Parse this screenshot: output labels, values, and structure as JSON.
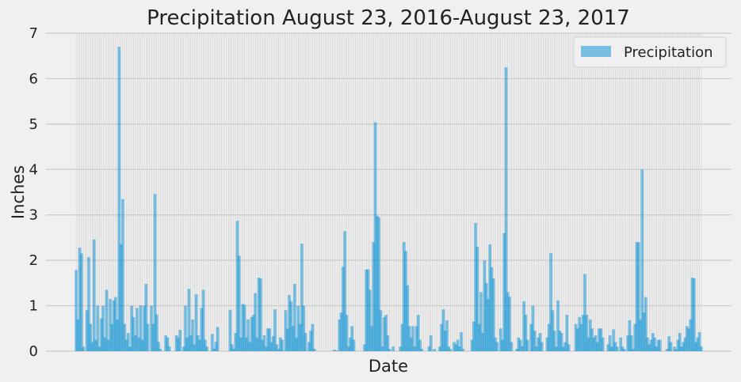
{
  "chart_data": {
    "type": "bar",
    "title": "Precipitation August 23, 2016-August 23, 2017",
    "xlabel": "Date",
    "ylabel": "Inches",
    "ylim": [
      0,
      7
    ],
    "yticks": [
      "0",
      "1",
      "2",
      "3",
      "4",
      "5",
      "6",
      "7"
    ],
    "grid": true,
    "legend_position": "top-right",
    "series": [
      {
        "name": "Precipitation",
        "color": "#008fd5",
        "values": [
          1.79,
          0.7,
          2.28,
          2.15,
          0.1,
          0.0,
          0.9,
          2.07,
          0.6,
          0.2,
          2.46,
          0.25,
          1.0,
          0.1,
          0.72,
          1.0,
          0.3,
          1.35,
          0.25,
          1.15,
          0.6,
          1.12,
          1.19,
          0.7,
          6.7,
          2.35,
          3.35,
          0.6,
          0.25,
          0.4,
          0.1,
          1.0,
          0.75,
          0.35,
          0.95,
          0.3,
          1.01,
          0.25,
          1.0,
          1.48,
          0.6,
          0.0,
          1.0,
          0.6,
          3.46,
          0.81,
          0.2,
          0.05,
          0.0,
          0.0,
          0.35,
          0.3,
          0.1,
          0.0,
          0.0,
          0.0,
          0.35,
          0.3,
          0.47,
          0.0,
          0.1,
          1.0,
          0.3,
          1.37,
          0.35,
          0.7,
          0.15,
          1.25,
          0.35,
          0.25,
          0.95,
          1.35,
          0.25,
          0.1,
          0.0,
          0.0,
          0.38,
          0.05,
          0.2,
          0.53,
          0.0,
          0.0,
          0.0,
          0.0,
          0.0,
          0.0,
          0.91,
          0.15,
          0.05,
          0.4,
          2.87,
          2.1,
          0.3,
          1.04,
          1.02,
          0.3,
          0.7,
          0.2,
          0.75,
          0.8,
          1.28,
          0.3,
          1.62,
          1.6,
          0.25,
          0.35,
          0.1,
          0.5,
          0.5,
          0.2,
          0.33,
          0.92,
          0.15,
          0.05,
          0.3,
          0.25,
          0.0,
          0.9,
          0.5,
          1.24,
          1.1,
          0.55,
          1.48,
          0.3,
          1.0,
          0.6,
          2.37,
          1.0,
          0.4,
          0.0,
          0.2,
          0.45,
          0.6,
          0.05,
          0.0,
          0.0,
          0.0,
          0.0,
          0.0,
          0.0,
          0.0,
          0.0,
          0.0,
          0.0,
          0.03,
          0.02,
          0.0,
          0.7,
          0.85,
          1.86,
          2.64,
          0.8,
          0.1,
          0.3,
          0.55,
          0.25,
          0.0,
          0.0,
          0.0,
          0.0,
          0.0,
          0.15,
          1.8,
          1.8,
          1.35,
          0.55,
          2.4,
          5.04,
          2.98,
          2.95,
          0.9,
          0.1,
          0.75,
          0.8,
          0.35,
          0.05,
          0.0,
          0.1,
          0.0,
          0.0,
          0.0,
          0.1,
          0.6,
          2.4,
          2.2,
          1.45,
          0.55,
          0.3,
          0.55,
          0.1,
          0.55,
          0.8,
          0.25,
          0.05,
          0.0,
          0.0,
          0.0,
          0.1,
          0.35,
          0.0,
          0.05,
          0.0,
          0.0,
          0.1,
          0.6,
          0.92,
          0.45,
          0.68,
          0.1,
          0.05,
          0.0,
          0.2,
          0.15,
          0.25,
          0.1,
          0.42,
          0.05,
          0.0,
          0.0,
          0.0,
          0.0,
          0.25,
          0.65,
          2.82,
          2.3,
          0.6,
          1.3,
          0.4,
          2.0,
          1.5,
          1.15,
          2.35,
          1.85,
          1.6,
          0.3,
          0.2,
          0.0,
          0.5,
          0.25,
          2.6,
          6.25,
          1.3,
          1.2,
          0.2,
          0.0,
          0.0,
          0.05,
          0.3,
          0.25,
          0.1,
          1.1,
          0.8,
          0.25,
          0.0,
          0.6,
          1.0,
          0.45,
          0.1,
          0.3,
          0.4,
          0.2,
          0.0,
          0.0,
          0.3,
          0.6,
          2.16,
          0.9,
          0.45,
          0.1,
          1.12,
          0.45,
          0.4,
          0.1,
          0.2,
          0.8,
          0.15,
          0.0,
          0.0,
          0.0,
          0.6,
          0.5,
          0.75,
          0.6,
          0.8,
          1.7,
          0.8,
          0.3,
          0.7,
          0.5,
          0.3,
          0.35,
          0.2,
          0.5,
          0.5,
          0.3,
          0.0,
          0.0,
          0.15,
          0.35,
          0.1,
          0.48,
          0.2,
          0.1,
          0.0,
          0.3,
          0.1,
          0.05,
          0.0,
          0.35,
          0.68,
          0.35,
          0.05,
          0.6,
          2.4,
          2.4,
          0.7,
          4.0,
          0.85,
          1.19,
          0.3,
          0.15,
          0.25,
          0.4,
          0.3,
          0.1,
          0.25,
          0.25,
          0.0,
          0.0,
          0.0,
          0.05,
          0.33,
          0.2,
          0.0,
          0.1,
          0.05,
          0.25,
          0.4,
          0.1,
          0.2,
          0.3,
          0.55,
          0.5,
          0.7,
          1.62,
          1.6,
          0.2,
          0.3,
          0.42,
          0.1
        ]
      }
    ]
  }
}
